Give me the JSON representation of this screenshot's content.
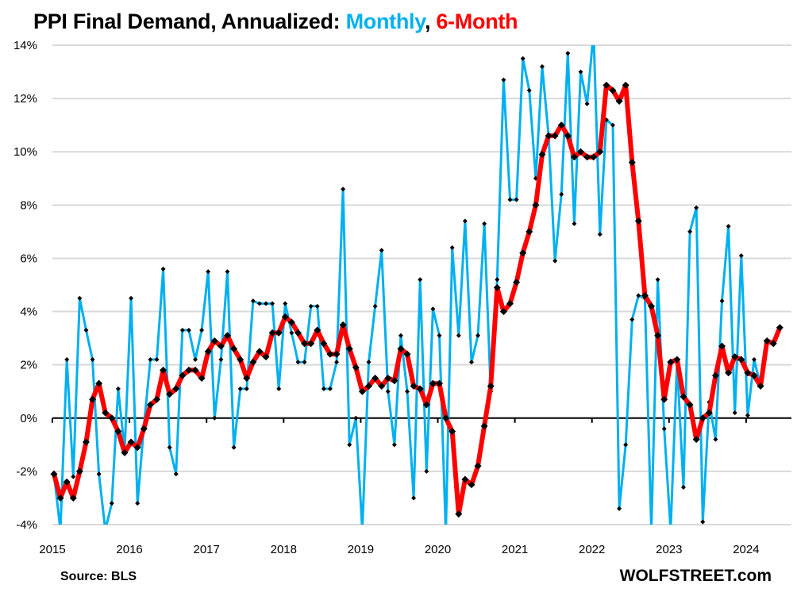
{
  "chart_data": {
    "type": "line",
    "title_parts": [
      {
        "text": "PPI Final Demand,  Annualized: ",
        "color": "#000000"
      },
      {
        "text": "Monthly",
        "color": "#00b0f0"
      },
      {
        "text": ", ",
        "color": "#000000"
      },
      {
        "text": "6-Month",
        "color": "#ff0000"
      }
    ],
    "xlabel": "",
    "ylabel": "",
    "x_start": "2015-01",
    "x_tick_labels": [
      "2015",
      "2016",
      "2017",
      "2018",
      "2019",
      "2020",
      "2021",
      "2022",
      "2023",
      "2024"
    ],
    "y_tick_labels": [
      "14%",
      "12%",
      "10%",
      "8%",
      "6%",
      "4%",
      "2%",
      "0%",
      "-2%",
      "-4%"
    ],
    "y_ticks": [
      14,
      12,
      10,
      8,
      6,
      4,
      2,
      0,
      -2,
      -4
    ],
    "ylim": [
      -4,
      14
    ],
    "grid": true,
    "series": [
      {
        "name": "Monthly",
        "color": "#00b0f0",
        "values": [
          -2.1,
          -4.2,
          2.2,
          -2.2,
          4.5,
          3.3,
          2.2,
          -2.1,
          -4.2,
          -3.2,
          1.1,
          -1.2,
          4.5,
          -3.2,
          -0.3,
          2.2,
          2.2,
          5.6,
          -1.1,
          -2.1,
          3.3,
          3.3,
          2.2,
          3.3,
          5.5,
          0.0,
          2.2,
          5.5,
          -1.1,
          1.1,
          1.1,
          4.4,
          4.3,
          4.3,
          4.3,
          1.1,
          4.3,
          3.2,
          2.1,
          2.1,
          4.2,
          4.2,
          1.1,
          1.1,
          2.1,
          8.6,
          -1.0,
          0.0,
          -4.2,
          2.1,
          4.2,
          6.3,
          1.0,
          -1.0,
          3.1,
          1.0,
          -3.0,
          5.2,
          -2.0,
          4.1,
          3.1,
          -4.3,
          6.4,
          3.1,
          7.4,
          2.1,
          3.1,
          7.3,
          1.0,
          5.2,
          12.7,
          8.2,
          8.2,
          13.5,
          12.3,
          9.0,
          13.2,
          10.6,
          5.9,
          8.4,
          13.7,
          7.3,
          13.0,
          11.8,
          14.5,
          6.9,
          11.2,
          11.0,
          -3.4,
          -1.0,
          3.7,
          4.6,
          4.5,
          -4.2,
          5.2,
          -0.4,
          -4.2,
          2.1,
          -2.6,
          7.0,
          7.9,
          -3.9,
          0.6,
          -0.8,
          4.4,
          7.2,
          0.2,
          6.1,
          0.1,
          2.2,
          1.2
        ]
      },
      {
        "name": "6-Month",
        "color": "#ff0000",
        "values": [
          -2.1,
          -3.0,
          -2.4,
          -3.0,
          -2.0,
          -0.9,
          0.7,
          1.3,
          0.2,
          0.0,
          -0.5,
          -1.3,
          -0.9,
          -1.1,
          -0.4,
          0.5,
          0.7,
          1.8,
          0.9,
          1.1,
          1.6,
          1.8,
          1.8,
          1.5,
          2.5,
          2.9,
          2.7,
          3.1,
          2.6,
          2.2,
          1.5,
          2.1,
          2.5,
          2.3,
          3.2,
          3.2,
          3.8,
          3.6,
          3.2,
          2.8,
          2.8,
          3.3,
          2.8,
          2.4,
          2.4,
          3.5,
          2.6,
          1.9,
          1.0,
          1.2,
          1.5,
          1.2,
          1.5,
          1.4,
          2.6,
          2.4,
          1.2,
          1.1,
          0.5,
          1.3,
          1.3,
          0.0,
          -0.5,
          -3.6,
          -2.3,
          -2.5,
          -1.8,
          -0.3,
          1.2,
          4.9,
          4.0,
          4.3,
          5.1,
          6.2,
          7.0,
          8.0,
          9.9,
          10.6,
          10.6,
          11.0,
          10.6,
          9.8,
          10.0,
          9.8,
          9.8,
          10.0,
          12.5,
          12.3,
          11.9,
          12.5,
          9.6,
          7.4,
          4.6,
          4.2,
          3.1,
          0.7,
          2.1,
          2.2,
          0.8,
          0.5,
          -0.8,
          0.0,
          0.2,
          1.6,
          2.7,
          1.7,
          2.3,
          2.2,
          1.7,
          1.6,
          1.2,
          2.9,
          2.8,
          3.4
        ]
      }
    ]
  },
  "footer": {
    "source": "Source: BLS",
    "brand": "WOLFSTREET.com"
  }
}
